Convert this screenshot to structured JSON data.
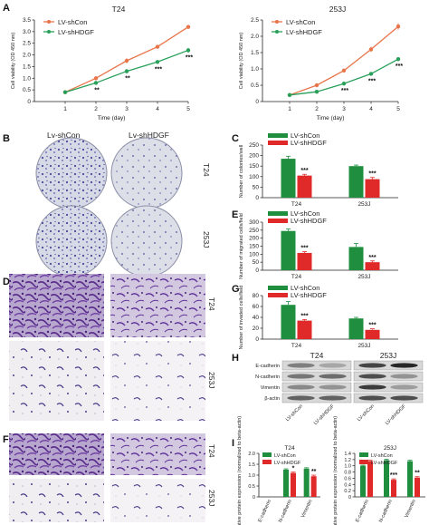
{
  "colors": {
    "shcon": "#e8744a",
    "shhdgf": "#28a05a",
    "bar_con": "#1f8f3f",
    "bar_hdgf": "#e02a2a"
  },
  "panel_labels": {
    "A": "A",
    "B": "B",
    "C": "C",
    "D": "D",
    "E": "E",
    "F": "F",
    "G": "G",
    "H": "H",
    "I": "I"
  },
  "row_labels": {
    "t24": "T24",
    "j253": "253J"
  },
  "column_labels": {
    "lv_shcon": "Lv-shCon",
    "lv_shhdgf": "Lv-shHDGF"
  },
  "western": {
    "proteins": [
      "E-cadherin",
      "N-cadherin",
      "Vimentin",
      "β-actin"
    ],
    "lanes": [
      "LV-shCon",
      "LV-shHDGF",
      "LV-shCon",
      "LV-shHDGF"
    ],
    "groups": [
      "T24",
      "253J"
    ]
  },
  "chart_data": [
    {
      "id": "A-T24",
      "type": "line",
      "title": "T24",
      "xlabel": "Time (day)",
      "ylabel": "Cell viability (OD 450 nm)",
      "x": [
        1,
        2,
        3,
        4,
        5
      ],
      "xlim": [
        0,
        5
      ],
      "ylim": [
        0,
        3.5
      ],
      "yticks": [
        0,
        0.5,
        1.0,
        1.5,
        2.0,
        2.5,
        3.0,
        3.5
      ],
      "yticklabels": [
        "0",
        "0.5",
        "1.0",
        "1.5",
        "2.0",
        "2.5",
        "3.0",
        "3.5"
      ],
      "series": [
        {
          "name": "LV-shCon",
          "values": [
            0.4,
            1.0,
            1.75,
            2.35,
            3.2
          ],
          "errors": [
            0.05,
            0.05,
            0.1,
            0.05,
            0.05
          ],
          "stars": [
            "",
            "",
            "",
            "",
            ""
          ]
        },
        {
          "name": "LV-shHDGF",
          "values": [
            0.4,
            0.8,
            1.3,
            1.7,
            2.2
          ],
          "errors": [
            0.05,
            0.05,
            0.1,
            0.05,
            0.1
          ],
          "stars": [
            "",
            "**",
            "**",
            "***",
            "***"
          ]
        }
      ],
      "legend": "top-left"
    },
    {
      "id": "A-253J",
      "type": "line",
      "title": "253J",
      "xlabel": "Time (day)",
      "ylabel": "Cell viability (OD 450 nm)",
      "x": [
        1,
        2,
        3,
        4,
        5
      ],
      "xlim": [
        0,
        5
      ],
      "ylim": [
        0,
        2.5
      ],
      "yticks": [
        0,
        0.5,
        1.0,
        1.5,
        2.0,
        2.5
      ],
      "yticklabels": [
        "0",
        "0.5",
        "1.0",
        "1.5",
        "2.0",
        "2.5"
      ],
      "series": [
        {
          "name": "LV-shCon",
          "values": [
            0.2,
            0.5,
            0.95,
            1.6,
            2.3
          ],
          "errors": [
            0.02,
            0.03,
            0.04,
            0.08,
            0.1
          ],
          "stars": [
            "",
            "",
            "",
            "",
            ""
          ]
        },
        {
          "name": "LV-shHDGF",
          "values": [
            0.2,
            0.3,
            0.55,
            0.85,
            1.3
          ],
          "errors": [
            0.02,
            0.02,
            0.03,
            0.04,
            0.06
          ],
          "stars": [
            "",
            "",
            "***",
            "***",
            "***"
          ]
        }
      ],
      "legend": "top-left"
    },
    {
      "id": "C",
      "type": "bar",
      "ylabel": "Number of colonies/well",
      "categories": [
        "T24",
        "253J"
      ],
      "ylim": [
        0,
        250
      ],
      "yticks": [
        0,
        50,
        100,
        150,
        200,
        250
      ],
      "series": [
        {
          "name": "LV-shCon",
          "values": [
            185,
            150
          ],
          "errors": [
            12,
            5
          ]
        },
        {
          "name": "LV-shHDGF",
          "values": [
            105,
            88
          ],
          "errors": [
            6,
            8
          ]
        }
      ],
      "stars": [
        "***",
        "***"
      ],
      "legend": "top-left"
    },
    {
      "id": "E",
      "type": "bar",
      "ylabel": "Number of migrated cells/field",
      "categories": [
        "T24",
        "253J"
      ],
      "ylim": [
        0,
        300
      ],
      "yticks": [
        0,
        50,
        100,
        150,
        200,
        250,
        300
      ],
      "series": [
        {
          "name": "LV-shCon",
          "values": [
            245,
            145
          ],
          "errors": [
            12,
            22
          ]
        },
        {
          "name": "LV-shHDGF",
          "values": [
            108,
            50
          ],
          "errors": [
            8,
            8
          ]
        }
      ],
      "stars": [
        "***",
        "***"
      ],
      "legend": "top-left"
    },
    {
      "id": "G",
      "type": "bar",
      "ylabel": "Number of invaded cells/field",
      "categories": [
        "T24",
        "253J"
      ],
      "ylim": [
        0,
        80
      ],
      "yticks": [
        0,
        20,
        40,
        60,
        80
      ],
      "series": [
        {
          "name": "LV-shCon",
          "values": [
            63,
            38
          ],
          "errors": [
            6,
            2
          ]
        },
        {
          "name": "LV-shHDGF",
          "values": [
            34,
            17
          ],
          "errors": [
            2,
            2
          ]
        }
      ],
      "stars": [
        "***",
        "***"
      ],
      "legend": "top-left"
    },
    {
      "id": "I-T24",
      "type": "bar",
      "title": "T24",
      "ylabel": "Relative protein expression (normalized to beta-actin)",
      "categories": [
        "E-cadherin",
        "N-cadherin",
        "Vimentin"
      ],
      "ylim": [
        0,
        2.0
      ],
      "yticks": [
        0,
        0.5,
        1.0,
        1.5,
        2.0
      ],
      "yticklabels": [
        "0",
        "0.5",
        "1.0",
        "1.5",
        "2.0"
      ],
      "series": [
        {
          "name": "LV-shCon",
          "values": [
            0,
            1.25,
            1.3
          ],
          "errors": [
            0,
            0.04,
            0.04
          ]
        },
        {
          "name": "LV-shHDGF",
          "values": [
            0,
            1.1,
            0.95
          ],
          "errors": [
            0,
            0.04,
            0.05
          ]
        }
      ],
      "stars": [
        "",
        "*",
        "**"
      ],
      "legend": "top-left"
    },
    {
      "id": "I-253J",
      "type": "bar",
      "title": "253J",
      "ylabel": "Relative protein expression (normalized to beta-actin)",
      "categories": [
        "E-cadherin",
        "N-cadherin",
        "Vimentin"
      ],
      "ylim": [
        0,
        1.4
      ],
      "yticks": [
        0,
        0.2,
        0.4,
        0.6,
        0.8,
        1.0,
        1.2,
        1.4
      ],
      "yticklabels": [
        "0",
        "0.2",
        "0.4",
        "0.6",
        "0.8",
        "1.0",
        "1.2",
        "1.4"
      ],
      "series": [
        {
          "name": "LV-shCon",
          "values": [
            1.0,
            1.18,
            1.15
          ],
          "errors": [
            0.02,
            0.03,
            0.03
          ]
        },
        {
          "name": "LV-shHDGF",
          "values": [
            1.15,
            0.55,
            0.62
          ],
          "errors": [
            0.03,
            0.03,
            0.03
          ]
        }
      ],
      "stars": [
        "",
        "***",
        "**"
      ],
      "legend": "top-left"
    }
  ]
}
